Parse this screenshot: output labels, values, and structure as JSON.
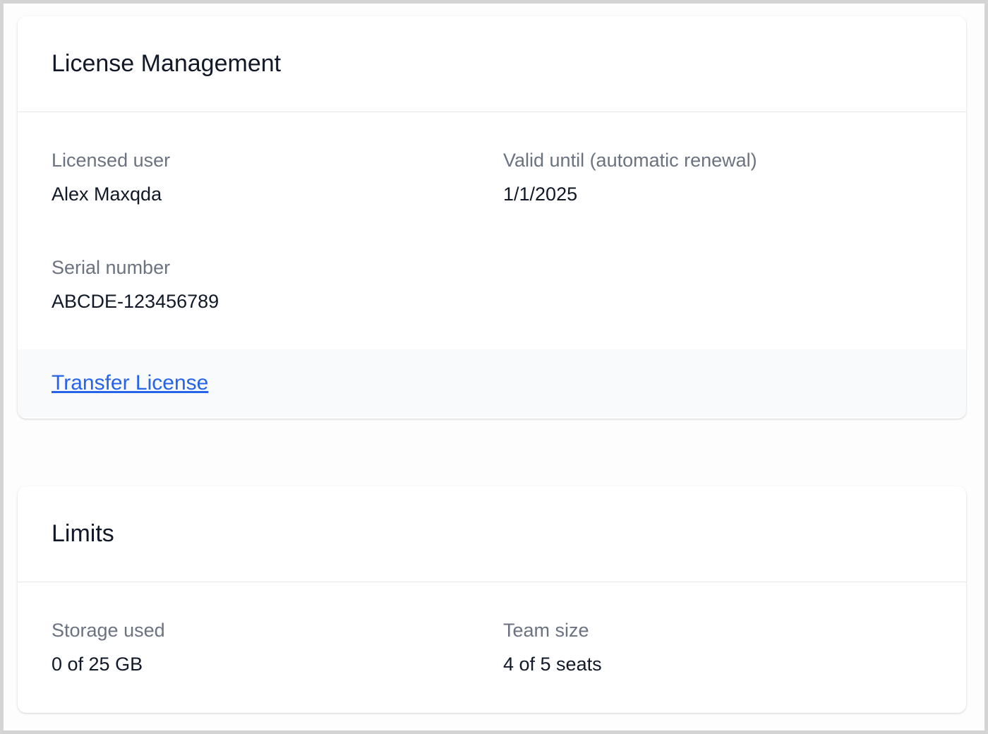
{
  "license": {
    "title": "License Management",
    "fields": [
      {
        "label": "Licensed user",
        "value": "Alex Maxqda"
      },
      {
        "label": "Valid until (automatic renewal)",
        "value": "1/1/2025"
      },
      {
        "label": "Serial number",
        "value": "ABCDE-123456789"
      }
    ],
    "transfer_link": "Transfer License"
  },
  "limits": {
    "title": "Limits",
    "fields": [
      {
        "label": "Storage used",
        "value": "0 of 25 GB"
      },
      {
        "label": "Team size",
        "value": "4 of 5 seats"
      }
    ]
  },
  "colors": {
    "link": "#2563eb",
    "label": "#6b7280",
    "text": "#111827"
  }
}
